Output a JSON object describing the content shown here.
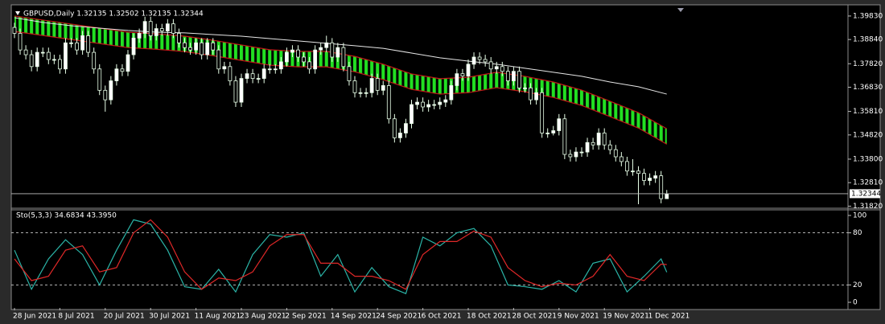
{
  "chart_data": [
    {
      "type": "candlestick",
      "title": "GBPUSD,Daily 1.32135 1.32502 1.32135 1.32344",
      "categories": [
        "28 Jun 2021",
        null,
        null,
        null,
        null,
        null,
        null,
        null,
        "8 Jul 2021",
        null,
        null,
        null,
        null,
        null,
        null,
        null,
        "20 Jul 2021",
        null,
        null,
        null,
        null,
        null,
        null,
        null,
        "30 Jul 2021",
        null,
        null,
        null,
        null,
        null,
        null,
        null,
        "11 Aug 2021",
        null,
        null,
        null,
        null,
        null,
        null,
        null,
        "23 Aug 2021",
        null,
        null,
        null,
        null,
        null,
        null,
        null,
        "2 Sep 2021",
        null,
        null,
        null,
        null,
        null,
        null,
        null,
        "14 Sep 2021",
        null,
        null,
        null,
        null,
        null,
        null,
        null,
        "24 Sep 2021",
        null,
        null,
        null,
        null,
        null,
        null,
        null,
        "6 Oct 2021",
        null,
        null,
        null,
        null,
        null,
        null,
        null,
        "18 Oct 2021",
        null,
        null,
        null,
        null,
        null,
        null,
        null,
        "28 Oct 2021",
        null,
        null,
        null,
        null,
        null,
        null,
        null,
        "9 Nov 2021",
        null,
        null,
        null,
        null,
        null,
        null,
        null,
        "19 Nov 2021",
        null,
        null,
        null,
        null,
        null,
        null,
        null,
        "1 Dec 2021",
        null,
        null,
        null
      ],
      "candles": [
        [
          1.3935,
          1.3955,
          1.389,
          1.391
        ],
        [
          1.391,
          1.393,
          1.382,
          1.384
        ],
        [
          1.384,
          1.386,
          1.38,
          1.382
        ],
        [
          1.382,
          1.384,
          1.375,
          1.377
        ],
        [
          1.377,
          1.385,
          1.375,
          1.383
        ],
        [
          1.383,
          1.385,
          1.381,
          1.383
        ],
        [
          1.383,
          1.385,
          1.378,
          1.38
        ],
        [
          1.38,
          1.382,
          1.378,
          1.38
        ],
        [
          1.38,
          1.382,
          1.374,
          1.376
        ],
        [
          1.376,
          1.389,
          1.374,
          1.387
        ],
        [
          1.387,
          1.389,
          1.385,
          1.387
        ],
        [
          1.387,
          1.389,
          1.382,
          1.384
        ],
        [
          1.384,
          1.392,
          1.382,
          1.39
        ],
        [
          1.39,
          1.392,
          1.381,
          1.383
        ],
        [
          1.383,
          1.385,
          1.374,
          1.376
        ],
        [
          1.376,
          1.378,
          1.365,
          1.367
        ],
        [
          1.367,
          1.369,
          1.358,
          1.363
        ],
        [
          1.363,
          1.373,
          1.361,
          1.371
        ],
        [
          1.371,
          1.378,
          1.369,
          1.376
        ],
        [
          1.376,
          1.378,
          1.373,
          1.375
        ],
        [
          1.375,
          1.384,
          1.373,
          1.382
        ],
        [
          1.382,
          1.391,
          1.38,
          1.389
        ],
        [
          1.389,
          1.393,
          1.387,
          1.391
        ],
        [
          1.391,
          1.398,
          1.389,
          1.396
        ],
        [
          1.396,
          1.398,
          1.388,
          1.39
        ],
        [
          1.39,
          1.395,
          1.388,
          1.393
        ],
        [
          1.393,
          1.395,
          1.39,
          1.392
        ],
        [
          1.392,
          1.397,
          1.39,
          1.395
        ],
        [
          1.395,
          1.397,
          1.389,
          1.391
        ],
        [
          1.391,
          1.393,
          1.385,
          1.387
        ],
        [
          1.387,
          1.389,
          1.383,
          1.385
        ],
        [
          1.385,
          1.387,
          1.382,
          1.384
        ],
        [
          1.384,
          1.389,
          1.382,
          1.387
        ],
        [
          1.387,
          1.389,
          1.38,
          1.382
        ],
        [
          1.382,
          1.389,
          1.38,
          1.387
        ],
        [
          1.387,
          1.389,
          1.382,
          1.384
        ],
        [
          1.384,
          1.386,
          1.374,
          1.376
        ],
        [
          1.376,
          1.379,
          1.374,
          1.377
        ],
        [
          1.377,
          1.379,
          1.369,
          1.371
        ],
        [
          1.371,
          1.373,
          1.36,
          1.362
        ],
        [
          1.362,
          1.374,
          1.36,
          1.372
        ],
        [
          1.372,
          1.376,
          1.37,
          1.374
        ],
        [
          1.374,
          1.376,
          1.37,
          1.372
        ],
        [
          1.372,
          1.374,
          1.37,
          1.372
        ],
        [
          1.372,
          1.378,
          1.37,
          1.376
        ],
        [
          1.376,
          1.378,
          1.374,
          1.376
        ],
        [
          1.376,
          1.378,
          1.374,
          1.376
        ],
        [
          1.376,
          1.381,
          1.374,
          1.379
        ],
        [
          1.379,
          1.385,
          1.377,
          1.383
        ],
        [
          1.383,
          1.386,
          1.381,
          1.384
        ],
        [
          1.384,
          1.386,
          1.379,
          1.381
        ],
        [
          1.381,
          1.383,
          1.377,
          1.379
        ],
        [
          1.379,
          1.381,
          1.374,
          1.376
        ],
        [
          1.376,
          1.386,
          1.374,
          1.384
        ],
        [
          1.384,
          1.387,
          1.382,
          1.385
        ],
        [
          1.385,
          1.39,
          1.383,
          1.387
        ],
        [
          1.387,
          1.389,
          1.379,
          1.381
        ],
        [
          1.381,
          1.387,
          1.379,
          1.385
        ],
        [
          1.385,
          1.387,
          1.375,
          1.377
        ],
        [
          1.377,
          1.379,
          1.369,
          1.371
        ],
        [
          1.371,
          1.373,
          1.364,
          1.366
        ],
        [
          1.366,
          1.368,
          1.364,
          1.366
        ],
        [
          1.366,
          1.368,
          1.364,
          1.366
        ],
        [
          1.366,
          1.374,
          1.364,
          1.372
        ],
        [
          1.372,
          1.374,
          1.365,
          1.367
        ],
        [
          1.367,
          1.371,
          1.365,
          1.369
        ],
        [
          1.369,
          1.371,
          1.353,
          1.355
        ],
        [
          1.355,
          1.357,
          1.345,
          1.347
        ],
        [
          1.347,
          1.351,
          1.345,
          1.349
        ],
        [
          1.349,
          1.355,
          1.347,
          1.353
        ],
        [
          1.353,
          1.363,
          1.351,
          1.361
        ],
        [
          1.361,
          1.364,
          1.359,
          1.362
        ],
        [
          1.362,
          1.364,
          1.358,
          1.36
        ],
        [
          1.36,
          1.363,
          1.358,
          1.361
        ],
        [
          1.361,
          1.363,
          1.359,
          1.361
        ],
        [
          1.361,
          1.364,
          1.359,
          1.362
        ],
        [
          1.362,
          1.365,
          1.36,
          1.363
        ],
        [
          1.363,
          1.371,
          1.361,
          1.369
        ],
        [
          1.369,
          1.376,
          1.367,
          1.374
        ],
        [
          1.374,
          1.376,
          1.371,
          1.373
        ],
        [
          1.373,
          1.38,
          1.371,
          1.378
        ],
        [
          1.378,
          1.383,
          1.376,
          1.381
        ],
        [
          1.381,
          1.383,
          1.378,
          1.38
        ],
        [
          1.38,
          1.382,
          1.377,
          1.379
        ],
        [
          1.379,
          1.381,
          1.374,
          1.376
        ],
        [
          1.376,
          1.379,
          1.374,
          1.377
        ],
        [
          1.377,
          1.379,
          1.373,
          1.375
        ],
        [
          1.375,
          1.377,
          1.369,
          1.371
        ],
        [
          1.371,
          1.377,
          1.369,
          1.375
        ],
        [
          1.375,
          1.377,
          1.366,
          1.368
        ],
        [
          1.368,
          1.37,
          1.366,
          1.368
        ],
        [
          1.368,
          1.37,
          1.361,
          1.363
        ],
        [
          1.363,
          1.368,
          1.361,
          1.366
        ],
        [
          1.366,
          1.368,
          1.347,
          1.349
        ],
        [
          1.349,
          1.351,
          1.347,
          1.349
        ],
        [
          1.349,
          1.352,
          1.348,
          1.35
        ],
        [
          1.35,
          1.357,
          1.348,
          1.355
        ],
        [
          1.355,
          1.357,
          1.338,
          1.34
        ],
        [
          1.34,
          1.342,
          1.337,
          1.339
        ],
        [
          1.339,
          1.343,
          1.337,
          1.341
        ],
        [
          1.341,
          1.343,
          1.339,
          1.341
        ],
        [
          1.341,
          1.347,
          1.339,
          1.345
        ],
        [
          1.345,
          1.347,
          1.342,
          1.344
        ],
        [
          1.344,
          1.351,
          1.342,
          1.349
        ],
        [
          1.349,
          1.351,
          1.342,
          1.344
        ],
        [
          1.344,
          1.346,
          1.34,
          1.342
        ],
        [
          1.342,
          1.344,
          1.337,
          1.339
        ],
        [
          1.339,
          1.341,
          1.335,
          1.337
        ],
        [
          1.337,
          1.339,
          1.331,
          1.333
        ],
        [
          1.333,
          1.338,
          1.331,
          1.333
        ],
        [
          1.333,
          1.335,
          1.319,
          1.332
        ],
        [
          1.332,
          1.334,
          1.327,
          1.329
        ],
        [
          1.329,
          1.332,
          1.327,
          1.33
        ],
        [
          1.33,
          1.333,
          1.328,
          1.331
        ],
        [
          1.331,
          1.333,
          1.3194,
          1.32135
        ],
        [
          1.32135,
          1.32502,
          1.32135,
          1.32344
        ]
      ],
      "up_color": "#ffffff",
      "down_color": "#000000",
      "wick_color": "#e8ffe8",
      "band": {
        "x": [
          0,
          5,
          10,
          15,
          20,
          25,
          30,
          35,
          40,
          45,
          50,
          55,
          60,
          65,
          70,
          75,
          80,
          85,
          90,
          95,
          100,
          105,
          110,
          115
        ],
        "upper": [
          1.3983,
          1.3966,
          1.3949,
          1.3932,
          1.3915,
          1.3908,
          1.3898,
          1.3881,
          1.3861,
          1.3841,
          1.3834,
          1.3834,
          1.3813,
          1.378,
          1.3739,
          1.3719,
          1.3725,
          1.3746,
          1.3729,
          1.3705,
          1.3671,
          1.3624,
          1.3576,
          1.3508
        ],
        "lower": [
          1.3918,
          1.3901,
          1.3884,
          1.3867,
          1.385,
          1.3843,
          1.3833,
          1.3816,
          1.3796,
          1.3776,
          1.3769,
          1.3769,
          1.3748,
          1.3715,
          1.3674,
          1.3654,
          1.366,
          1.3681,
          1.3664,
          1.364,
          1.3606,
          1.3559,
          1.3511,
          1.3443
        ],
        "color": "#22e022",
        "edge_color": "#c01818"
      },
      "ma": {
        "values": [
          1.3976,
          1.3956,
          1.3942,
          1.3932,
          1.3922,
          1.3915,
          1.3912,
          1.3905,
          1.3898,
          1.3888,
          1.3878,
          1.3868,
          1.3858,
          1.3847,
          1.3827,
          1.3807,
          1.3793,
          1.378,
          1.3763,
          1.3746,
          1.3729,
          1.3705,
          1.3685,
          1.3654
        ],
        "color": "#e6e6e6"
      },
      "ylim": [
        1.318,
        1.402
      ],
      "yticks": [
        {
          "value": 1.3983,
          "label": "1.39830"
        },
        {
          "value": 1.3884,
          "label": "1.38840"
        },
        {
          "value": 1.3782,
          "label": "1.37820"
        },
        {
          "value": 1.3683,
          "label": "1.36830"
        },
        {
          "value": 1.3581,
          "label": "1.35810"
        },
        {
          "value": 1.3482,
          "label": "1.34820"
        },
        {
          "value": 1.338,
          "label": "1.33800"
        },
        {
          "value": 1.3281,
          "label": "1.32810"
        },
        {
          "value": 1.3182,
          "label": "1.31820"
        }
      ],
      "price_label": "1.32344",
      "price_line_color": "#bfbfbf"
    },
    {
      "type": "line",
      "title": "Sto(5,3,3) 34.6834 43.3950",
      "x": [
        0,
        3,
        6,
        9,
        12,
        15,
        18,
        21,
        24,
        27,
        30,
        33,
        36,
        39,
        42,
        45,
        48,
        51,
        54,
        57,
        60,
        63,
        66,
        69,
        72,
        75,
        78,
        81,
        84,
        87,
        90,
        93,
        96,
        99,
        102,
        105,
        108,
        111,
        114,
        115
      ],
      "series": [
        {
          "color": "#2bb5a8",
          "values": [
            60,
            15,
            50,
            72,
            55,
            20,
            60,
            95,
            90,
            60,
            18,
            15,
            38,
            12,
            55,
            78,
            75,
            80,
            30,
            55,
            12,
            40,
            18,
            10,
            75,
            65,
            80,
            85,
            65,
            20,
            18,
            15,
            25,
            12,
            45,
            50,
            12,
            30,
            50,
            34.6834
          ]
        },
        {
          "color": "#e02828",
          "values": [
            50,
            25,
            30,
            60,
            65,
            35,
            40,
            80,
            95,
            75,
            35,
            15,
            28,
            25,
            35,
            65,
            78,
            78,
            45,
            45,
            30,
            30,
            25,
            15,
            55,
            70,
            70,
            82,
            75,
            40,
            25,
            18,
            22,
            20,
            30,
            55,
            30,
            25,
            44,
            43.395
          ]
        }
      ],
      "ylim": [
        -4.6,
        104.6
      ],
      "yticks": [
        0,
        20,
        80,
        100
      ],
      "levels": [
        20,
        80
      ],
      "level_color": "#c8c8c8"
    }
  ]
}
